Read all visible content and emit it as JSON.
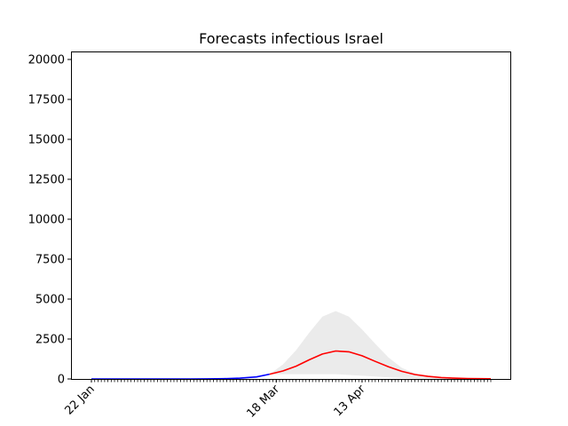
{
  "chart_data": {
    "type": "line",
    "title": "Forecasts infectious Israel",
    "xlabel": "",
    "ylabel": "",
    "x_range_days": [
      0,
      121
    ],
    "x_ticks": [
      {
        "day": 0,
        "label": "22 Jan"
      },
      {
        "day": 56,
        "label": "18 Mar"
      },
      {
        "day": 82,
        "label": "13 Apr"
      }
    ],
    "ylim": [
      0,
      20500
    ],
    "y_ticks": [
      0,
      2500,
      5000,
      7500,
      10000,
      12500,
      15000,
      17500,
      20000
    ],
    "grid": false,
    "legend": "none",
    "series": [
      {
        "role": "observed",
        "color": "#0000ff",
        "x": [
          0,
          10,
          20,
          30,
          35,
          40,
          45,
          50,
          54
        ],
        "y": [
          0,
          0,
          0,
          2,
          5,
          15,
          50,
          130,
          300
        ]
      },
      {
        "role": "forecast",
        "color": "#ff0000",
        "x": [
          54,
          58,
          62,
          66,
          70,
          74,
          78,
          82,
          86,
          90,
          94,
          98,
          102,
          106,
          110,
          114,
          118,
          121
        ],
        "y": [
          300,
          500,
          800,
          1200,
          1560,
          1750,
          1700,
          1450,
          1100,
          760,
          480,
          280,
          160,
          90,
          50,
          30,
          15,
          10
        ]
      }
    ],
    "band": {
      "color": "#ebebeb",
      "x": [
        54,
        58,
        62,
        66,
        70,
        74,
        78,
        82,
        86,
        90,
        94,
        98,
        102,
        106,
        110,
        114,
        118,
        121
      ],
      "lower": [
        300,
        300,
        300,
        300,
        300,
        300,
        250,
        200,
        150,
        100,
        60,
        30,
        15,
        5,
        0,
        0,
        0,
        0
      ],
      "upper": [
        300,
        900,
        1800,
        2900,
        3900,
        4250,
        3900,
        3100,
        2200,
        1350,
        700,
        350,
        180,
        100,
        60,
        30,
        15,
        10
      ]
    }
  }
}
